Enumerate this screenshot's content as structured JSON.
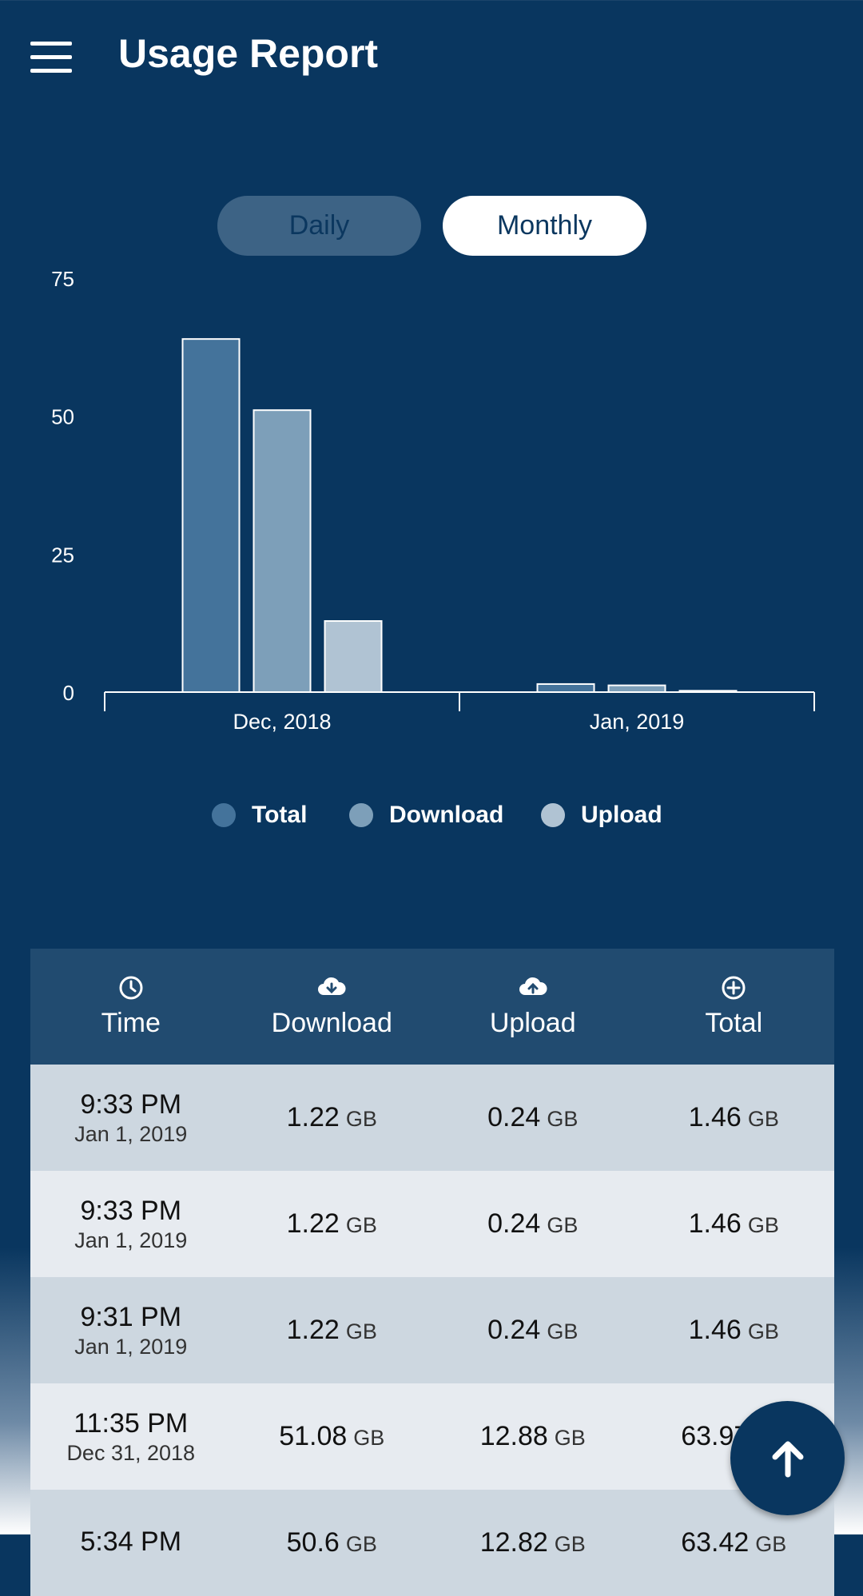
{
  "app": {
    "title": "Usage Report",
    "menu_icon": "hamburger-menu-icon"
  },
  "toggle": {
    "daily": "Daily",
    "monthly": "Monthly",
    "selected": "Monthly"
  },
  "colors": {
    "background": "#09365f",
    "total": "#44739b",
    "download": "#7d9fb9",
    "upload": "#b0c3d3"
  },
  "chart_data": {
    "type": "bar",
    "categories": [
      "Dec, 2018",
      "Jan, 2019"
    ],
    "series": [
      {
        "name": "Total",
        "values": [
          63.97,
          1.46
        ]
      },
      {
        "name": "Download",
        "values": [
          51.08,
          1.22
        ]
      },
      {
        "name": "Upload",
        "values": [
          12.88,
          0.24
        ]
      }
    ],
    "y_ticks": [
      "75",
      "50",
      "25",
      "0"
    ],
    "ylim": [
      0,
      75
    ],
    "legend_position": "bottom",
    "grid": false
  },
  "legend": [
    {
      "label": "Total"
    },
    {
      "label": "Download"
    },
    {
      "label": "Upload"
    }
  ],
  "table": {
    "headers": [
      {
        "label": "Time",
        "icon": "clock-icon"
      },
      {
        "label": "Download",
        "icon": "cloud-download-icon"
      },
      {
        "label": "Upload",
        "icon": "cloud-upload-icon"
      },
      {
        "label": "Total",
        "icon": "plus-circle-icon"
      }
    ],
    "rows": [
      {
        "time": "9:33 PM",
        "date": "Jan 1, 2019",
        "download": "1.22",
        "upload": "0.24",
        "total": "1.46",
        "unit": "GB"
      },
      {
        "time": "9:33 PM",
        "date": "Jan 1, 2019",
        "download": "1.22",
        "upload": "0.24",
        "total": "1.46",
        "unit": "GB"
      },
      {
        "time": "9:31 PM",
        "date": "Jan 1, 2019",
        "download": "1.22",
        "upload": "0.24",
        "total": "1.46",
        "unit": "GB"
      },
      {
        "time": "11:35 PM",
        "date": "Dec 31, 2018",
        "download": "51.08",
        "upload": "12.88",
        "total": "63.97",
        "unit": "GB"
      },
      {
        "time": "5:34 PM",
        "date": "",
        "download": "50.6",
        "upload": "12.82",
        "total": "63.42",
        "unit": "GB"
      }
    ]
  },
  "fab": {
    "icon": "arrow-up-icon"
  }
}
